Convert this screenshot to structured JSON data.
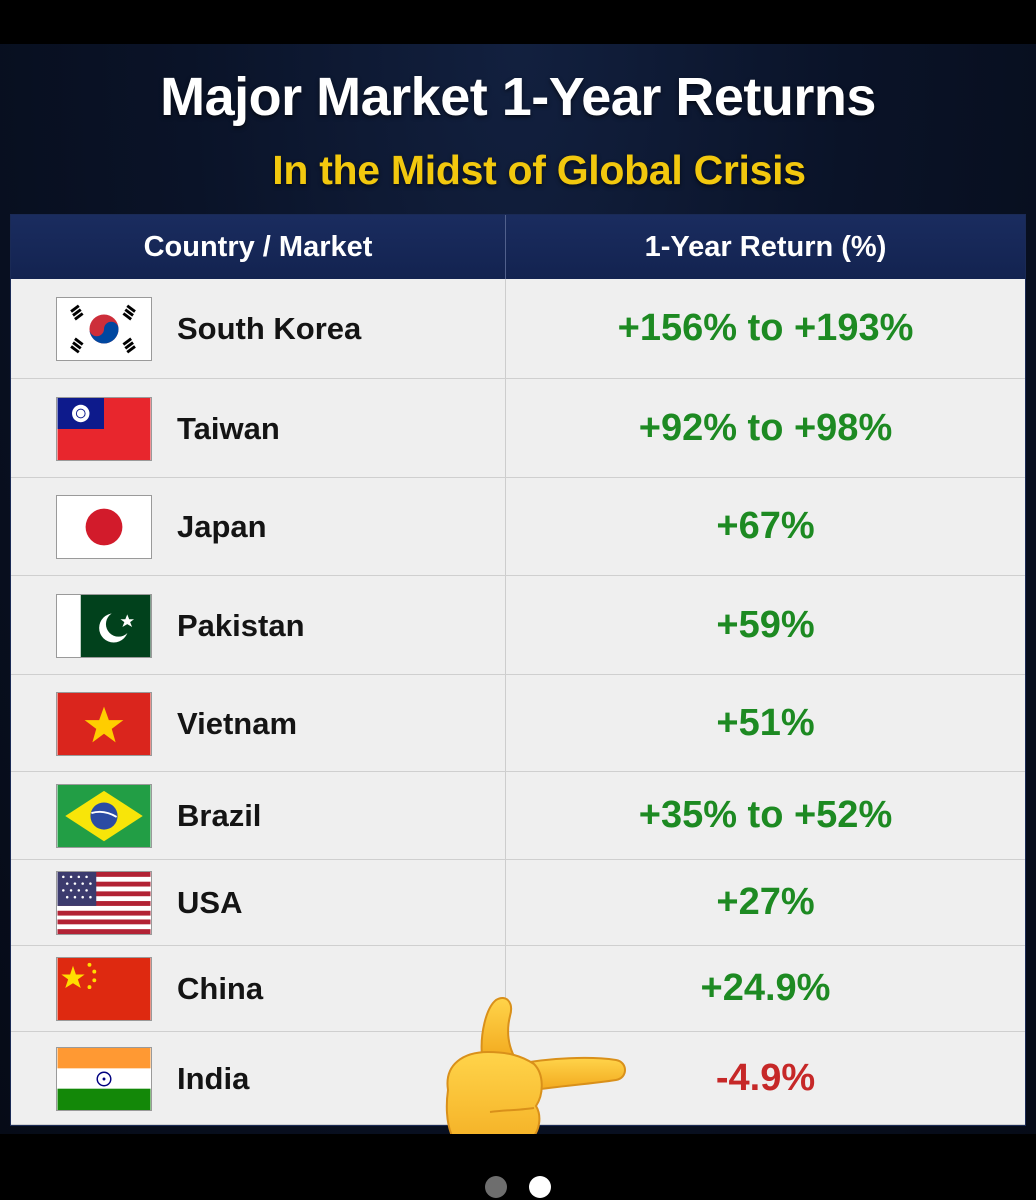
{
  "header": {
    "title": "Major Market 1-Year Returns",
    "subtitle": "In the Midst of Global Crisis"
  },
  "table": {
    "columns": [
      "Country / Market",
      "1-Year Return (%)"
    ],
    "rows": [
      {
        "country": "South Korea",
        "return": "+156% to +193%",
        "trend": "positive",
        "flag_icon": "south-korea-flag-icon"
      },
      {
        "country": "Taiwan",
        "return": "+92% to +98%",
        "trend": "positive",
        "flag_icon": "taiwan-flag-icon"
      },
      {
        "country": "Japan",
        "return": "+67%",
        "trend": "positive",
        "flag_icon": "japan-flag-icon"
      },
      {
        "country": "Pakistan",
        "return": "+59%",
        "trend": "positive",
        "flag_icon": "pakistan-flag-icon"
      },
      {
        "country": "Vietnam",
        "return": "+51%",
        "trend": "positive",
        "flag_icon": "vietnam-flag-icon"
      },
      {
        "country": "Brazil",
        "return": "+35% to +52%",
        "trend": "positive",
        "flag_icon": "brazil-flag-icon"
      },
      {
        "country": "USA",
        "return": "+27%",
        "trend": "positive",
        "flag_icon": "usa-flag-icon"
      },
      {
        "country": "China",
        "return": "+24.9%",
        "trend": "positive",
        "flag_icon": "china-flag-icon"
      },
      {
        "country": "India",
        "return": "-4.9%",
        "trend": "negative",
        "flag_icon": "india-flag-icon"
      }
    ]
  },
  "colors": {
    "positive": "#1d8a22",
    "negative": "#c62828",
    "subtitle": "#f2c80e",
    "header_bg": "#1a2c5f"
  },
  "annotation": {
    "icon": "pointing-hand-emoji-icon"
  },
  "carousel": {
    "total": 2,
    "active": 2
  }
}
